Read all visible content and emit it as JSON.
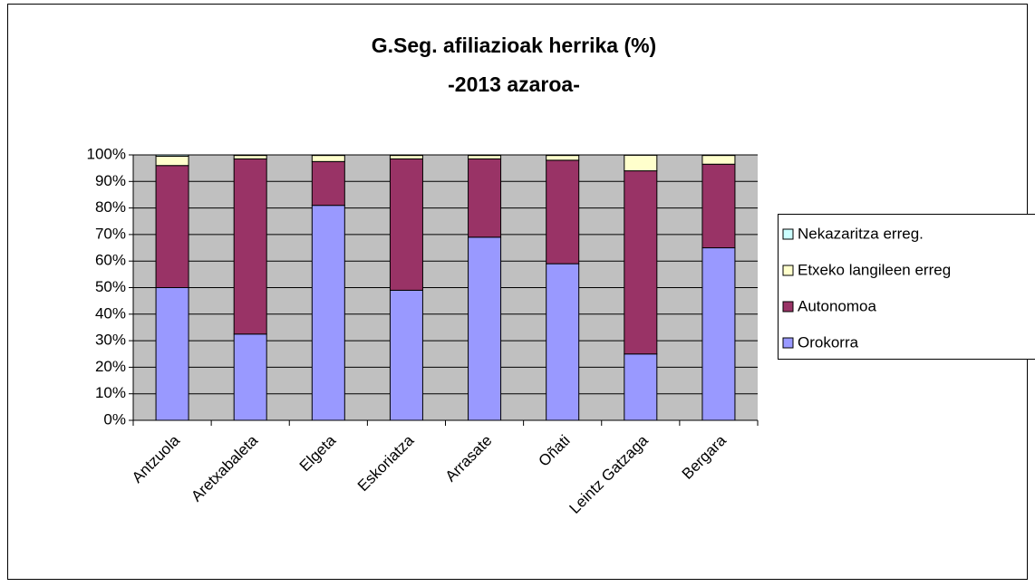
{
  "chart_data": {
    "type": "stacked_bar",
    "title": "G.Seg. afiliazioak herrika (%)",
    "subtitle": "-2013 azaroa-",
    "categories": [
      "Antzuola",
      "Aretxabaleta",
      "Elgeta",
      "Eskoriatza",
      "Arrasate",
      "Oñati",
      "Leintz Gatzaga",
      "Bergara"
    ],
    "series": [
      {
        "name": "Orokorra",
        "color": "#9999ff",
        "values": [
          50,
          32.5,
          81,
          49,
          69,
          59,
          25,
          65
        ]
      },
      {
        "name": "Autonomoa",
        "color": "#993366",
        "values": [
          46,
          66,
          16.5,
          49.5,
          29.5,
          39,
          69,
          31.5
        ]
      },
      {
        "name": "Etxeko langileen erreg",
        "color": "#ffffcc",
        "values": [
          3.5,
          1.3,
          2.3,
          1.3,
          1.3,
          1.8,
          5.9,
          3.3
        ]
      },
      {
        "name": "Nekazaritza erreg.",
        "color": "#ccffff",
        "values": [
          0.5,
          0.2,
          0.2,
          0.2,
          0.2,
          0.2,
          0.1,
          0.2
        ]
      }
    ],
    "ylim": [
      0,
      100
    ],
    "yticks": [
      {
        "value": 0,
        "label": "0%"
      },
      {
        "value": 10,
        "label": "10%"
      },
      {
        "value": 20,
        "label": "20%"
      },
      {
        "value": 30,
        "label": "30%"
      },
      {
        "value": 40,
        "label": "40%"
      },
      {
        "value": 50,
        "label": "50%"
      },
      {
        "value": 60,
        "label": "60%"
      },
      {
        "value": 70,
        "label": "70%"
      },
      {
        "value": 80,
        "label": "80%"
      },
      {
        "value": 90,
        "label": "90%"
      },
      {
        "value": 100,
        "label": "100%"
      }
    ],
    "grid": true,
    "legend": "right"
  }
}
